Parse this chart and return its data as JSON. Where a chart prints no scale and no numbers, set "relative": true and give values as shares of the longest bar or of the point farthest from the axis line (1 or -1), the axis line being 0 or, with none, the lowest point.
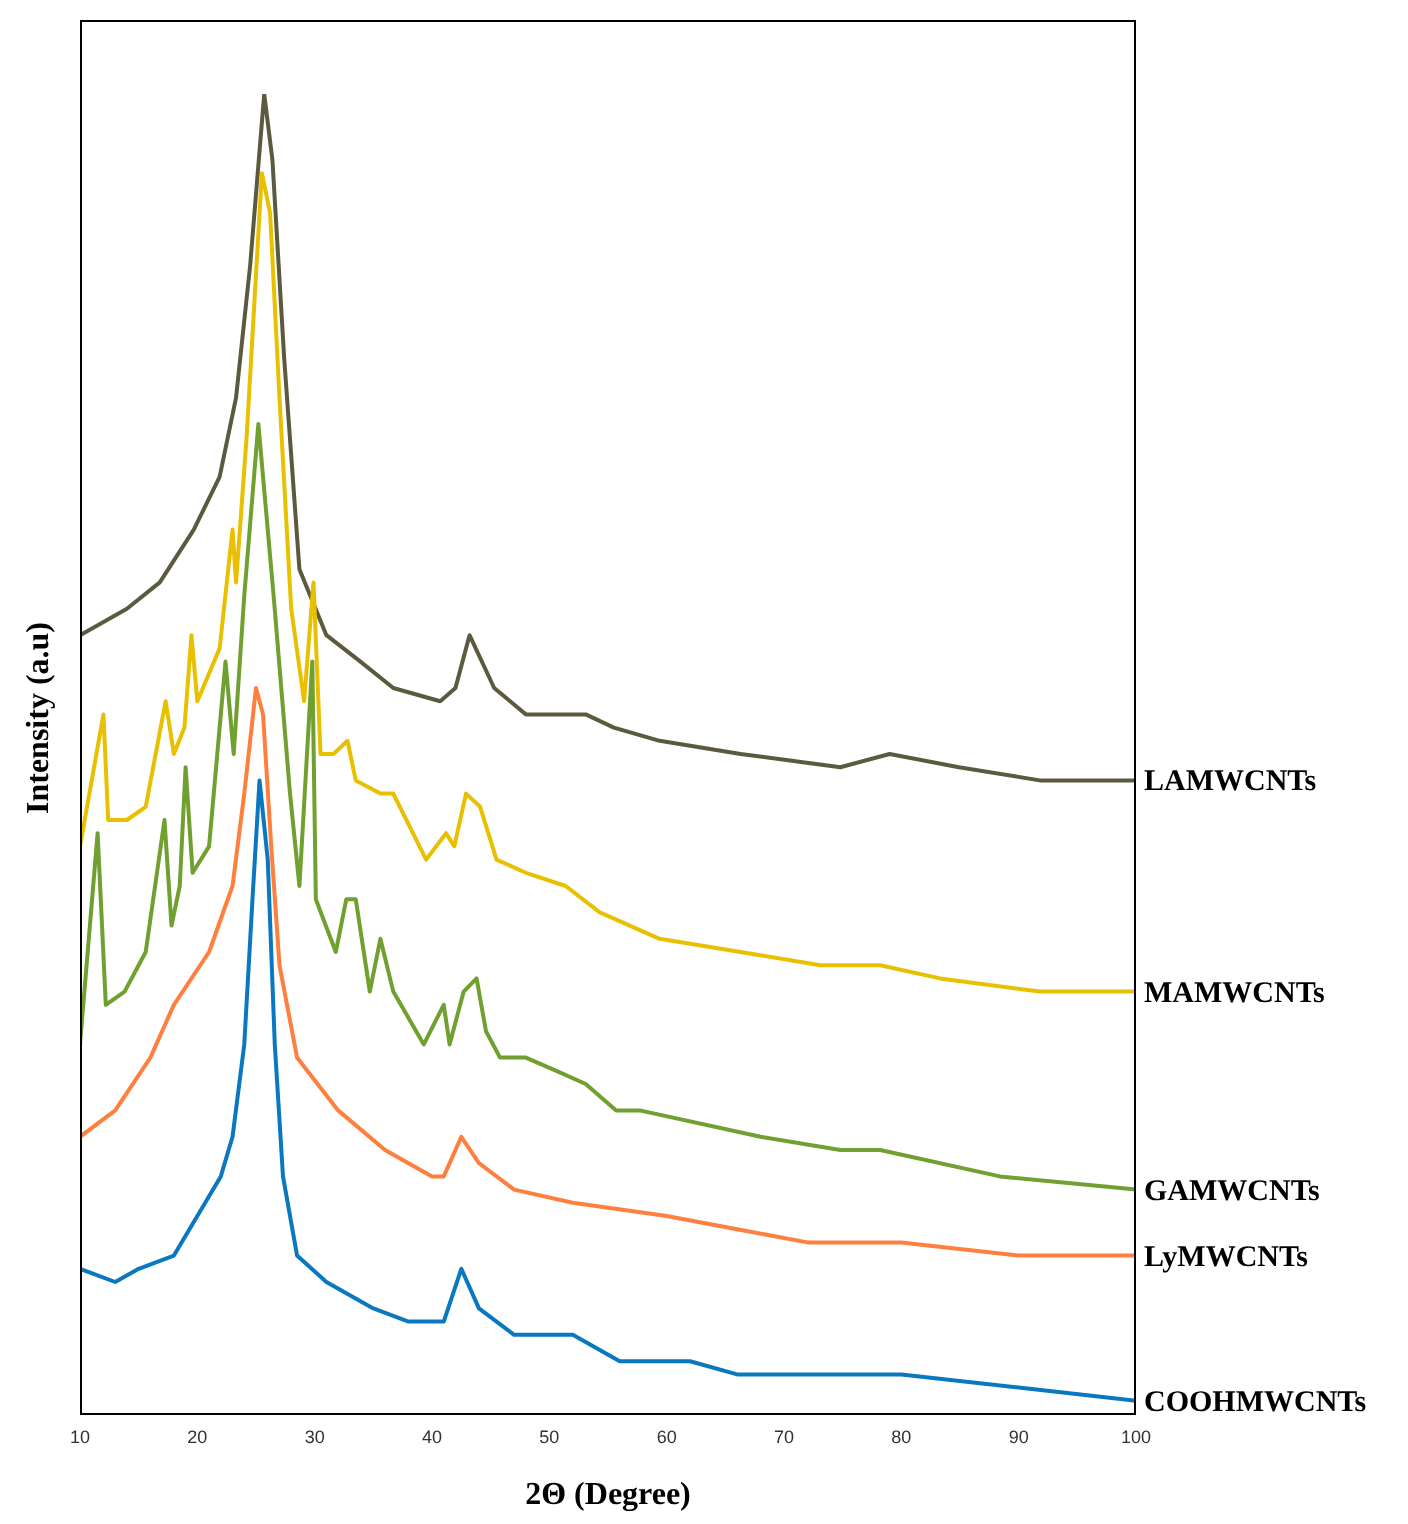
{
  "chart_data": {
    "type": "line",
    "relative": true,
    "xlabel": "2Θ (Degree)",
    "ylabel": "Intensity (a.u)",
    "xlim": [
      10,
      100
    ],
    "xticks": [
      10,
      20,
      30,
      40,
      50,
      60,
      70,
      80,
      90,
      100
    ],
    "series": [
      {
        "name": "LAMWCNTs",
        "color": "#5c5a3e",
        "x": [
          10,
          14,
          16.8,
          19.7,
          21.9,
          23.3,
          24.5,
          25.7,
          26.4,
          27.4,
          28.7,
          31,
          33.9,
          36.7,
          40.7,
          42,
          43.2,
          45.3,
          48,
          53.1,
          55.5,
          59.4,
          66.3,
          74.8,
          79,
          84.9,
          91.8,
          100
        ],
        "values": [
          0.59,
          0.61,
          0.63,
          0.67,
          0.71,
          0.77,
          0.87,
          1.0,
          0.95,
          0.8,
          0.64,
          0.59,
          0.57,
          0.55,
          0.54,
          0.55,
          0.59,
          0.55,
          0.53,
          0.53,
          0.52,
          0.51,
          0.5,
          0.49,
          0.5,
          0.49,
          0.48,
          0.48
        ]
      },
      {
        "name": "MAMWCNTs",
        "color": "#e8c000",
        "x": [
          10,
          12,
          12.4,
          14,
          15.6,
          17.3,
          18,
          18.9,
          19.5,
          20,
          21.9,
          23,
          23.3,
          24.2,
          25.5,
          26.2,
          27,
          28,
          29.1,
          29.9,
          30.5,
          31.6,
          32.8,
          33.5,
          35.6,
          36.7,
          39.5,
          41.2,
          41.9,
          42.9,
          44.1,
          45.5,
          48,
          51.4,
          54.3,
          59.4,
          66.3,
          73.1,
          78.2,
          83.3,
          91.8,
          100
        ],
        "values": [
          0.43,
          0.53,
          0.45,
          0.45,
          0.46,
          0.54,
          0.5,
          0.52,
          0.59,
          0.54,
          0.58,
          0.67,
          0.63,
          0.74,
          0.94,
          0.91,
          0.77,
          0.61,
          0.54,
          0.63,
          0.5,
          0.5,
          0.51,
          0.48,
          0.47,
          0.47,
          0.42,
          0.44,
          0.43,
          0.47,
          0.46,
          0.42,
          0.41,
          0.4,
          0.38,
          0.36,
          0.35,
          0.34,
          0.34,
          0.33,
          0.32,
          0.32
        ]
      },
      {
        "name": "GAMWCNTs",
        "color": "#70a030",
        "x": [
          10,
          11.5,
          12.2,
          13.8,
          15.6,
          17.2,
          17.8,
          18.5,
          19,
          19.6,
          21,
          22.4,
          23.1,
          24,
          25.2,
          26.5,
          27.9,
          28.7,
          29.8,
          30.1,
          31.8,
          32.7,
          33.5,
          34.7,
          35.6,
          36.7,
          39.3,
          41,
          41.5,
          42.7,
          43.8,
          44.6,
          45.8,
          48,
          50.6,
          53.1,
          55.7,
          57.7,
          68,
          74.8,
          78.2,
          88.4,
          100
        ],
        "values": [
          0.28,
          0.44,
          0.31,
          0.32,
          0.35,
          0.45,
          0.37,
          0.4,
          0.49,
          0.41,
          0.43,
          0.57,
          0.5,
          0.62,
          0.75,
          0.62,
          0.47,
          0.4,
          0.57,
          0.39,
          0.35,
          0.39,
          0.39,
          0.32,
          0.36,
          0.32,
          0.28,
          0.31,
          0.28,
          0.32,
          0.33,
          0.29,
          0.27,
          0.27,
          0.26,
          0.25,
          0.23,
          0.23,
          0.21,
          0.2,
          0.2,
          0.18,
          0.17
        ]
      },
      {
        "name": "LyMWCNTs",
        "color": "#ff7f3f",
        "x": [
          10,
          13,
          16,
          18,
          21,
          23,
          24,
          25,
          25.6,
          26.3,
          27,
          28.5,
          32,
          36,
          40,
          41,
          42.5,
          44,
          47,
          52,
          60,
          66,
          72,
          77,
          80,
          90,
          100
        ],
        "values": [
          0.21,
          0.23,
          0.27,
          0.31,
          0.35,
          0.4,
          0.47,
          0.55,
          0.53,
          0.43,
          0.34,
          0.27,
          0.23,
          0.2,
          0.18,
          0.18,
          0.21,
          0.19,
          0.17,
          0.16,
          0.15,
          0.14,
          0.13,
          0.13,
          0.13,
          0.12,
          0.12
        ]
      },
      {
        "name": "COOHMWCNTs",
        "color": "#0a78c0",
        "x": [
          10,
          13,
          15,
          18,
          20,
          22,
          23,
          24,
          24.7,
          25.3,
          26,
          26.6,
          27.3,
          28.5,
          31,
          35,
          38,
          41,
          42.5,
          44,
          47,
          52,
          56,
          62,
          66,
          70,
          78,
          80,
          90,
          100
        ],
        "values": [
          0.11,
          0.1,
          0.11,
          0.12,
          0.15,
          0.18,
          0.21,
          0.28,
          0.39,
          0.48,
          0.42,
          0.28,
          0.18,
          0.12,
          0.1,
          0.08,
          0.07,
          0.07,
          0.11,
          0.08,
          0.06,
          0.06,
          0.04,
          0.04,
          0.03,
          0.03,
          0.03,
          0.03,
          0.02,
          0.01
        ]
      }
    ]
  }
}
